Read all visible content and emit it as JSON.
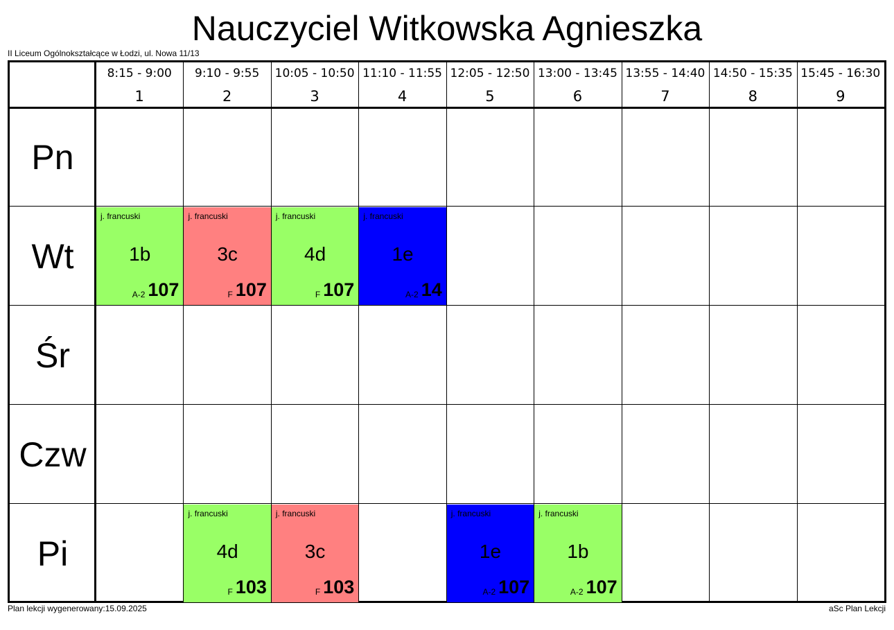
{
  "title": "Nauczyciel Witkowska Agnieszka",
  "school": "II Liceum Ogólnokształcące w Łodzi, ul. Nowa 11/13",
  "footer_left": "Plan lekcji wygenerowany:15.09.2025",
  "footer_right": "aSc Plan Lekcji",
  "periods": [
    {
      "time": "8:15 - 9:00",
      "num": "1"
    },
    {
      "time": "9:10 - 9:55",
      "num": "2"
    },
    {
      "time": "10:05 - 10:50",
      "num": "3"
    },
    {
      "time": "11:10 - 11:55",
      "num": "4"
    },
    {
      "time": "12:05 - 12:50",
      "num": "5"
    },
    {
      "time": "13:00 - 13:45",
      "num": "6"
    },
    {
      "time": "13:55 - 14:40",
      "num": "7"
    },
    {
      "time": "14:50 - 15:35",
      "num": "8"
    },
    {
      "time": "15:45 - 16:30",
      "num": "9"
    }
  ],
  "days": [
    "Pn",
    "Wt",
    "Śr",
    "Czw",
    "Pi"
  ],
  "colors": {
    "green": "#99ff66",
    "red": "#ff8080",
    "blue": "#0000ff",
    "grid": "#000000"
  },
  "lessons": [
    {
      "day": 1,
      "period": 1,
      "subject": "j. francuski",
      "class": "1b",
      "group": "A-2",
      "room": "107",
      "color": "#99ff66"
    },
    {
      "day": 1,
      "period": 2,
      "subject": "j. francuski",
      "class": "3c",
      "group": "F",
      "room": "107",
      "color": "#ff8080"
    },
    {
      "day": 1,
      "period": 3,
      "subject": "j. francuski",
      "class": "4d",
      "group": "F",
      "room": "107",
      "color": "#99ff66"
    },
    {
      "day": 1,
      "period": 4,
      "subject": "j. francuski",
      "class": "1e",
      "group": "A-2",
      "room": "14",
      "color": "#0000ff"
    },
    {
      "day": 4,
      "period": 2,
      "subject": "j. francuski",
      "class": "4d",
      "group": "F",
      "room": "103",
      "color": "#99ff66"
    },
    {
      "day": 4,
      "period": 3,
      "subject": "j. francuski",
      "class": "3c",
      "group": "F",
      "room": "103",
      "color": "#ff8080"
    },
    {
      "day": 4,
      "period": 5,
      "subject": "j. francuski",
      "class": "1e",
      "group": "A-2",
      "room": "107",
      "color": "#0000ff"
    },
    {
      "day": 4,
      "period": 6,
      "subject": "j. francuski",
      "class": "1b",
      "group": "A-2",
      "room": "107",
      "color": "#99ff66"
    }
  ]
}
